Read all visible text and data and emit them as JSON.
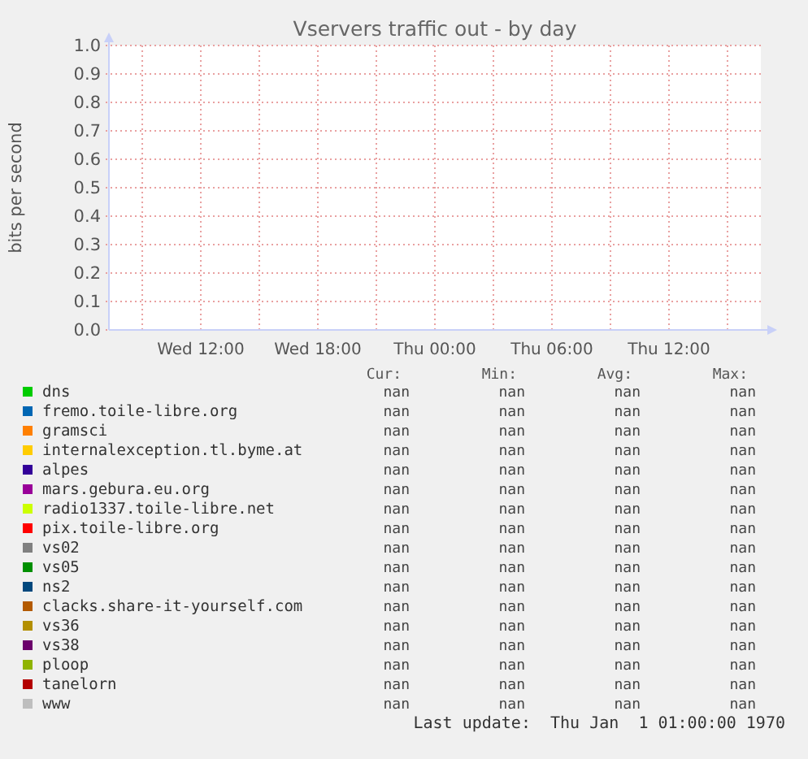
{
  "chart_data": {
    "type": "line",
    "title": "Vservers traffic out - by day",
    "ylabel": "bits per second",
    "categories": [
      null,
      "Wed 12:00",
      null,
      "Wed 18:00",
      null,
      "Thu 00:00",
      null,
      "Thu 06:00",
      null,
      "Thu 12:00",
      null
    ],
    "ylim": [
      0,
      1
    ],
    "yticks": [
      {
        "value": 0,
        "label": "0.0"
      },
      {
        "value": 0.1,
        "label": "0.1"
      },
      {
        "value": 0.2,
        "label": "0.2"
      },
      {
        "value": 0.3,
        "label": "0.3"
      },
      {
        "value": 0.4,
        "label": "0.4"
      },
      {
        "value": 0.5,
        "label": "0.5"
      },
      {
        "value": 0.6,
        "label": "0.6"
      },
      {
        "value": 0.7,
        "label": "0.7"
      },
      {
        "value": 0.8,
        "label": "0.8"
      },
      {
        "value": 0.9,
        "label": "0.9"
      },
      {
        "value": 1,
        "label": "1.0"
      }
    ],
    "grid": true,
    "legend": "bottom",
    "annotations": [
      "Cur:",
      "Min:",
      "Avg:",
      "Max:",
      "nan",
      "nan",
      "nan",
      "nan",
      "nan",
      "nan",
      "nan",
      "nan",
      "nan",
      "nan",
      "nan",
      "nan",
      "nan",
      "nan",
      "nan",
      "nan",
      "nan",
      "nan",
      "nan",
      "nan",
      "nan",
      "nan",
      "nan",
      "nan",
      "nan",
      "nan",
      "nan",
      "nan",
      "nan",
      "nan",
      "nan",
      "nan",
      "nan",
      "nan",
      "nan",
      "nan",
      "nan",
      "nan",
      "nan",
      "nan",
      "nan",
      "nan",
      "nan",
      "nan",
      "nan",
      "nan",
      "nan",
      "nan",
      "nan",
      "nan",
      "nan",
      "nan",
      "nan",
      "nan",
      "nan",
      "nan",
      "nan",
      "nan",
      "nan",
      "nan",
      "nan",
      "nan",
      "nan",
      "nan",
      "nan",
      "nan",
      "nan",
      "nan",
      "Last update:  Thu Jan  1 01:00:00 1970"
    ],
    "series": [
      {
        "name": "dns",
        "color": "#00cc00",
        "values": [
          null,
          null,
          null,
          null,
          null,
          null,
          null,
          null,
          null,
          null,
          null
        ]
      },
      {
        "name": "fremo.toile-libre.org",
        "color": "#0066b3",
        "values": [
          null,
          null,
          null,
          null,
          null,
          null,
          null,
          null,
          null,
          null,
          null
        ]
      },
      {
        "name": "gramsci",
        "color": "#ff8000",
        "values": [
          null,
          null,
          null,
          null,
          null,
          null,
          null,
          null,
          null,
          null,
          null
        ]
      },
      {
        "name": "internalexception.tl.byme.at",
        "color": "#ffcc00",
        "values": [
          null,
          null,
          null,
          null,
          null,
          null,
          null,
          null,
          null,
          null,
          null
        ]
      },
      {
        "name": "alpes",
        "color": "#330099",
        "values": [
          null,
          null,
          null,
          null,
          null,
          null,
          null,
          null,
          null,
          null,
          null
        ]
      },
      {
        "name": "mars.gebura.eu.org",
        "color": "#990099",
        "values": [
          null,
          null,
          null,
          null,
          null,
          null,
          null,
          null,
          null,
          null,
          null
        ]
      },
      {
        "name": "radio1337.toile-libre.net",
        "color": "#ccff00",
        "values": [
          null,
          null,
          null,
          null,
          null,
          null,
          null,
          null,
          null,
          null,
          null
        ]
      },
      {
        "name": "pix.toile-libre.org",
        "color": "#ff0000",
        "values": [
          null,
          null,
          null,
          null,
          null,
          null,
          null,
          null,
          null,
          null,
          null
        ]
      },
      {
        "name": "vs02",
        "color": "#808080",
        "values": [
          null,
          null,
          null,
          null,
          null,
          null,
          null,
          null,
          null,
          null,
          null
        ]
      },
      {
        "name": "vs05",
        "color": "#008f00",
        "values": [
          null,
          null,
          null,
          null,
          null,
          null,
          null,
          null,
          null,
          null,
          null
        ]
      },
      {
        "name": "ns2",
        "color": "#00487d",
        "values": [
          null,
          null,
          null,
          null,
          null,
          null,
          null,
          null,
          null,
          null,
          null
        ]
      },
      {
        "name": "clacks.share-it-yourself.com",
        "color": "#b35a00",
        "values": [
          null,
          null,
          null,
          null,
          null,
          null,
          null,
          null,
          null,
          null,
          null
        ]
      },
      {
        "name": "vs36",
        "color": "#b38f00",
        "values": [
          null,
          null,
          null,
          null,
          null,
          null,
          null,
          null,
          null,
          null,
          null
        ]
      },
      {
        "name": "vs38",
        "color": "#6b006b",
        "values": [
          null,
          null,
          null,
          null,
          null,
          null,
          null,
          null,
          null,
          null,
          null
        ]
      },
      {
        "name": "ploop",
        "color": "#8fb300",
        "values": [
          null,
          null,
          null,
          null,
          null,
          null,
          null,
          null,
          null,
          null,
          null
        ]
      },
      {
        "name": "tanelorn",
        "color": "#b30000",
        "values": [
          null,
          null,
          null,
          null,
          null,
          null,
          null,
          null,
          null,
          null,
          null
        ]
      },
      {
        "name": "www",
        "color": "#bebebe",
        "values": [
          null,
          null,
          null,
          null,
          null,
          null,
          null,
          null,
          null,
          null,
          null
        ]
      }
    ]
  }
}
